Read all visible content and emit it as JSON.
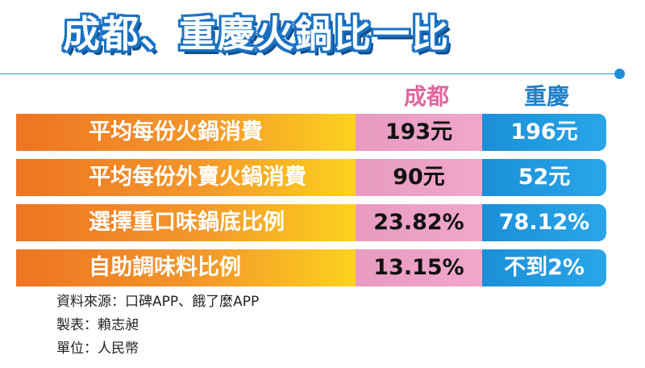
{
  "title": "成都、重慶火鍋比一比",
  "columns": {
    "chengdu": "成都",
    "chongqing": "重慶"
  },
  "rows": [
    {
      "label": "平均每份火鍋消費",
      "chengdu": "193元",
      "chongqing": "196元"
    },
    {
      "label": "平均每份外賣火鍋消費",
      "chengdu": "90元",
      "chongqing": "52元"
    },
    {
      "label": "選擇重口味鍋底比例",
      "chengdu": "23.82%",
      "chongqing": "78.12%"
    },
    {
      "label": "自助調味料比例",
      "chengdu": "13.15%",
      "chongqing": "不到2%"
    }
  ],
  "notes": {
    "source": "資料來源：口碑APP、餓了麼APP",
    "maker": "製表：賴志昶",
    "unit": "單位：人民幣"
  },
  "colors": {
    "title_outline": "#1a72c4",
    "label_bar_start": "#ee7422",
    "label_bar_end": "#fcd21d",
    "chengdu": "#e89ac1",
    "chongqing": "#1a8fd8"
  }
}
